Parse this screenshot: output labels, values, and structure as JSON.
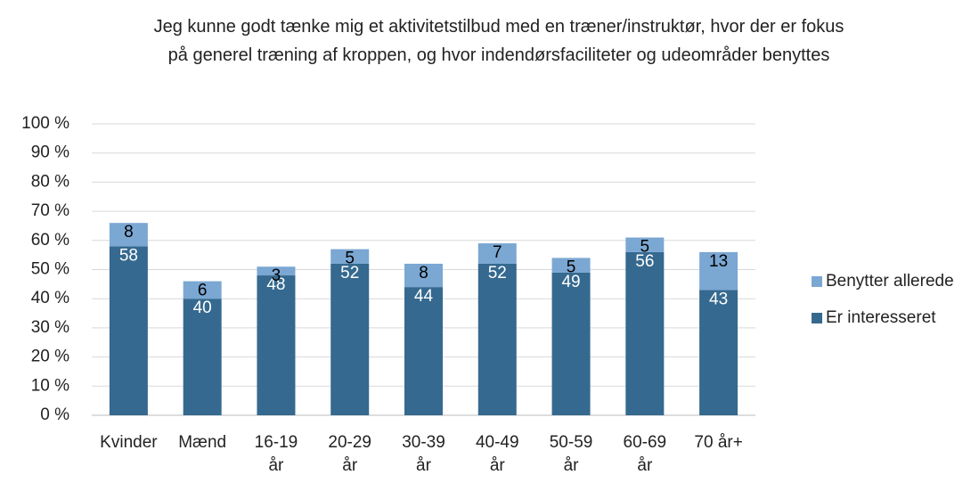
{
  "chart_data": {
    "type": "stacked_bar",
    "title": "Jeg kunne godt tænke mig et aktivitetstilbud med en træner/instruktør, hvor der er fokus på generel træning af kroppen, og hvor indendørsfaciliteter og udeområder benyttes",
    "categories": [
      "Kvinder",
      "Mænd",
      "16-19 år",
      "20-29 år",
      "30-39 år",
      "40-49 år",
      "50-59 år",
      "60-69 år",
      "70 år+"
    ],
    "series": [
      {
        "name": "Er interesseret",
        "color": "#35698f",
        "label_color": "#ffffff",
        "values": [
          58,
          40,
          48,
          52,
          44,
          52,
          49,
          56,
          43
        ]
      },
      {
        "name": "Benytter allerede",
        "color": "#7ba7d3",
        "label_color": "#000000",
        "values": [
          8,
          6,
          3,
          5,
          8,
          7,
          5,
          5,
          13
        ]
      }
    ],
    "ylim": [
      0,
      100
    ],
    "yticks": [
      {
        "value": 0,
        "label": "0 %"
      },
      {
        "value": 10,
        "label": "10 %"
      },
      {
        "value": 20,
        "label": "20 %"
      },
      {
        "value": 30,
        "label": "30 %"
      },
      {
        "value": 40,
        "label": "40 %"
      },
      {
        "value": 50,
        "label": "50 %"
      },
      {
        "value": 60,
        "label": "60 %"
      },
      {
        "value": 70,
        "label": "70 %"
      },
      {
        "value": 80,
        "label": "80 %"
      },
      {
        "value": 90,
        "label": "90 %"
      },
      {
        "value": 100,
        "label": "100 %"
      }
    ],
    "grid": true,
    "legend": "right"
  }
}
